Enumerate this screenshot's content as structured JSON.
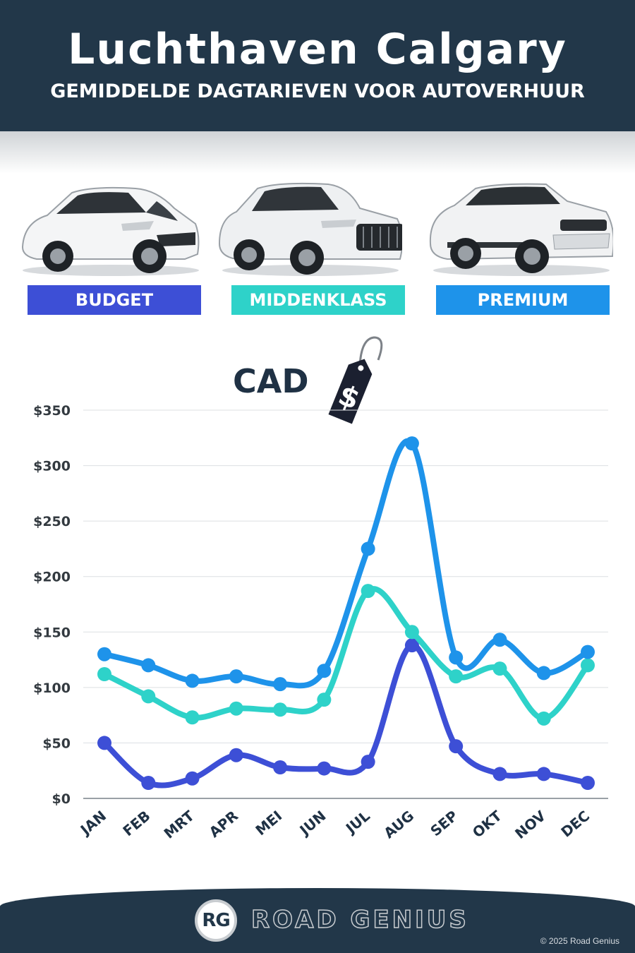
{
  "header": {
    "title": "Luchthaven Calgary",
    "subtitle": "GEMIDDELDE DAGTARIEVEN VOOR AUTOVERHUUR"
  },
  "categories": [
    {
      "label": "BUDGET",
      "color": "#3d4fd6",
      "car_icon": "hatchback-car-image"
    },
    {
      "label": "MIDDENKLASS",
      "color": "#2ed2c9",
      "car_icon": "suv-car-image"
    },
    {
      "label": "PREMIUM",
      "color": "#1e93ea",
      "car_icon": "premium-suv-car-image"
    }
  ],
  "currency": {
    "label": "CAD",
    "icon": "price-tag-dollar-icon",
    "symbol": "$"
  },
  "chart_data": {
    "type": "line",
    "categories": [
      "JAN",
      "FEB",
      "MRT",
      "APR",
      "MEI",
      "JUN",
      "JUL",
      "AUG",
      "SEP",
      "OKT",
      "NOV",
      "DEC"
    ],
    "ylim": [
      0,
      350
    ],
    "yticks": [
      0,
      50,
      100,
      150,
      200,
      250,
      300,
      350
    ],
    "ytick_labels": [
      "$0",
      "$50",
      "$100",
      "$150",
      "$200",
      "$250",
      "$300",
      "$350"
    ],
    "grid": true,
    "series": [
      {
        "name": "BUDGET",
        "color": "#3d4fd6",
        "values": [
          50,
          14,
          18,
          39,
          28,
          27,
          33,
          138,
          47,
          22,
          22,
          14
        ]
      },
      {
        "name": "MIDDENKLASS",
        "color": "#2ed2c9",
        "values": [
          112,
          92,
          73,
          81,
          80,
          89,
          187,
          150,
          110,
          117,
          72,
          120
        ]
      },
      {
        "name": "PREMIUM",
        "color": "#1e93ea",
        "values": [
          130,
          120,
          106,
          110,
          103,
          115,
          225,
          320,
          127,
          143,
          113,
          132
        ]
      }
    ]
  },
  "footer": {
    "logo_mark": "RG",
    "brand": "ROAD GENIUS",
    "copyright": "© 2025 Road Genius"
  }
}
